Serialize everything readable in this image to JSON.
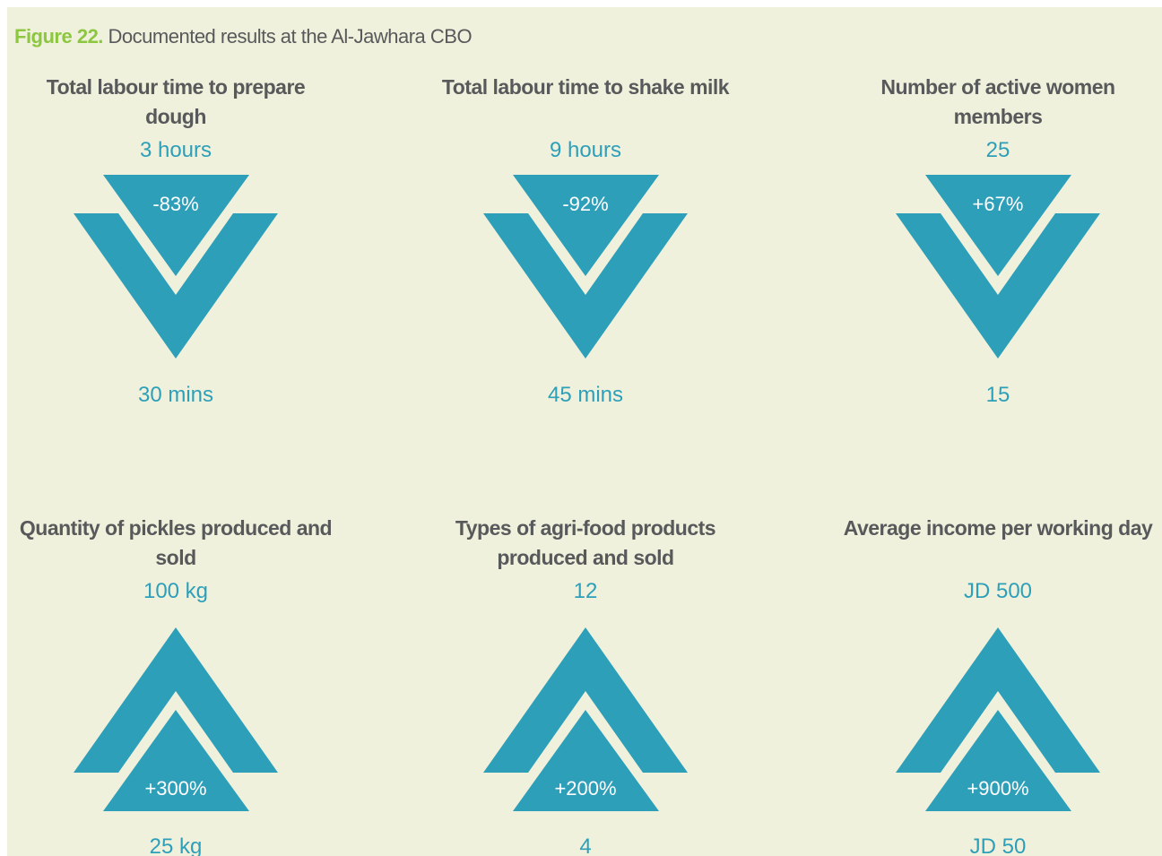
{
  "figure": {
    "label": "Figure 22.",
    "title": "Documented results at the Al-Jawhara CBO"
  },
  "panels": [
    {
      "title": "Total labour time to prepare dough",
      "top_value": "3 hours",
      "change": "-83%",
      "bottom_value": "30 mins"
    },
    {
      "title": "Total labour time to shake milk",
      "top_value": "9 hours",
      "change": "-92%",
      "bottom_value": "45 mins"
    },
    {
      "title": "Number of active women members",
      "top_value": "25",
      "change": "+67%",
      "bottom_value": "15"
    },
    {
      "title": "Quantity of pickles produced and sold",
      "top_value": "100 kg",
      "change": "+300%",
      "bottom_value": "25 kg"
    },
    {
      "title": "Types of agri-food products produced and sold",
      "top_value": "12",
      "change": "+200%",
      "bottom_value": "4"
    },
    {
      "title": "Average income per working day",
      "top_value": "JD 500",
      "change": "+900%",
      "bottom_value": "JD 50"
    }
  ]
}
